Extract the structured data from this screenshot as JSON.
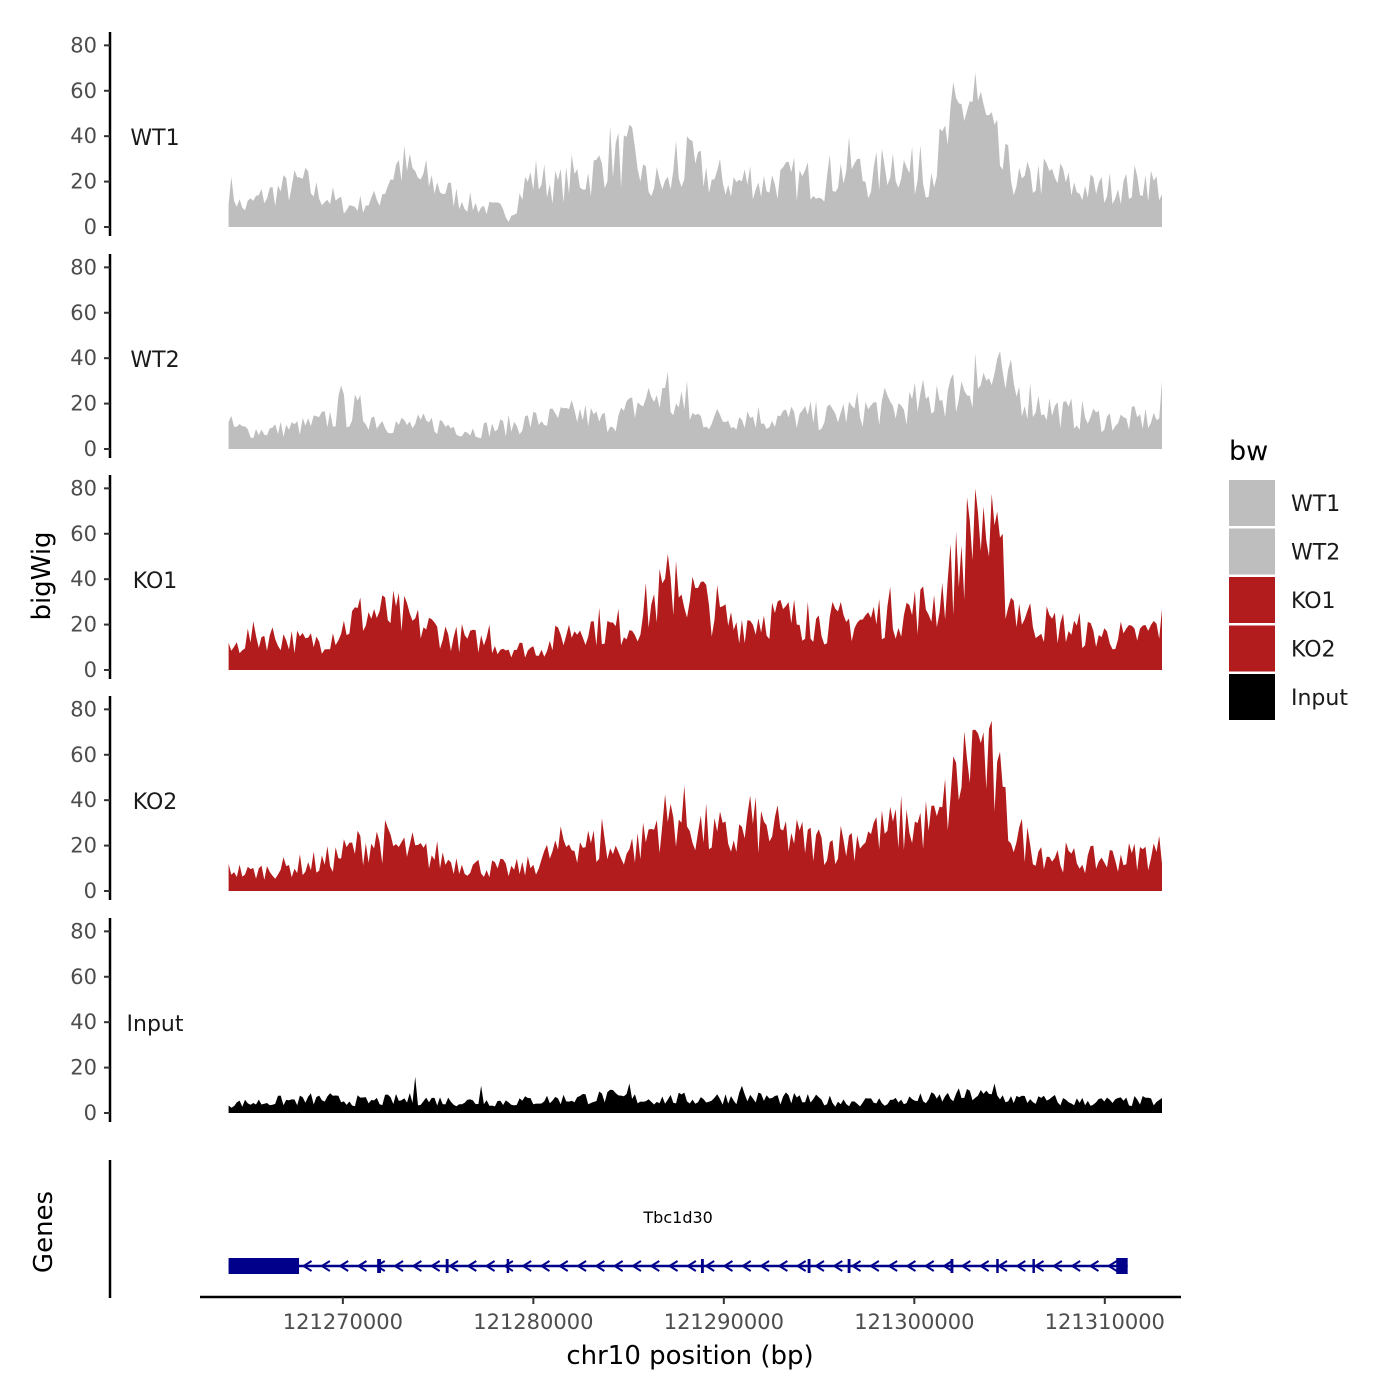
{
  "chart_data": {
    "type": "area",
    "chromosome": "chr10",
    "xlabel": "chr10 position (bp)",
    "ylabel": "bigWig",
    "genes_label": "Genes",
    "xlim": [
      121262500,
      121314000
    ],
    "data_range": [
      121264000,
      121313000
    ],
    "x_ticks": [
      {
        "value": 121270000,
        "label": "121270000"
      },
      {
        "value": 121280000,
        "label": "121280000"
      },
      {
        "value": 121290000,
        "label": "121290000"
      },
      {
        "value": 121300000,
        "label": "121300000"
      },
      {
        "value": 121310000,
        "label": "121310000"
      }
    ],
    "ylim": [
      0,
      85
    ],
    "y_ticks": [
      {
        "value": 0,
        "label": "0"
      },
      {
        "value": 20,
        "label": "20"
      },
      {
        "value": 40,
        "label": "40"
      },
      {
        "value": 60,
        "label": "60"
      },
      {
        "value": 80,
        "label": "80"
      }
    ],
    "tracks": [
      {
        "name": "WT1",
        "color": "#bebebe",
        "profile": [
          [
            0,
            18
          ],
          [
            1.5,
            8
          ],
          [
            3,
            12
          ],
          [
            4,
            14
          ],
          [
            5.5,
            16
          ],
          [
            7,
            18
          ],
          [
            8,
            20
          ],
          [
            9,
            16
          ],
          [
            10,
            14
          ],
          [
            11,
            12
          ],
          [
            12,
            10
          ],
          [
            13,
            9
          ],
          [
            14,
            10
          ],
          [
            16,
            12
          ],
          [
            17,
            20
          ],
          [
            18,
            27
          ],
          [
            19,
            26
          ],
          [
            20,
            22
          ],
          [
            21,
            20
          ],
          [
            22,
            19
          ],
          [
            23,
            17
          ],
          [
            24,
            14
          ],
          [
            25,
            12
          ],
          [
            26,
            10
          ],
          [
            27,
            9
          ],
          [
            28,
            8
          ],
          [
            29,
            8
          ],
          [
            30,
            4
          ],
          [
            31,
            12
          ],
          [
            32,
            20
          ],
          [
            33,
            22
          ],
          [
            34,
            20
          ],
          [
            35,
            18
          ],
          [
            36,
            19
          ],
          [
            37,
            22
          ],
          [
            38,
            22
          ],
          [
            39,
            23
          ],
          [
            40,
            28
          ],
          [
            41,
            33
          ],
          [
            42,
            30
          ],
          [
            43,
            30
          ],
          [
            44,
            27
          ],
          [
            45,
            17
          ],
          [
            46,
            20
          ],
          [
            47,
            18
          ],
          [
            48,
            22
          ],
          [
            49,
            26
          ],
          [
            50,
            25
          ],
          [
            51,
            24
          ],
          [
            52,
            20
          ],
          [
            53,
            20
          ],
          [
            54,
            19
          ],
          [
            55,
            20
          ],
          [
            56,
            22
          ],
          [
            57,
            18
          ],
          [
            58,
            20
          ],
          [
            59,
            20
          ],
          [
            60,
            21
          ],
          [
            61,
            20
          ],
          [
            62,
            21
          ],
          [
            63,
            20
          ],
          [
            64,
            20
          ],
          [
            65,
            23
          ],
          [
            66,
            25
          ],
          [
            67,
            28
          ],
          [
            68,
            22
          ],
          [
            69,
            20
          ],
          [
            70,
            25
          ],
          [
            71,
            30
          ],
          [
            72,
            27
          ],
          [
            73,
            24
          ],
          [
            74,
            22
          ],
          [
            75,
            24
          ],
          [
            76,
            30
          ],
          [
            77,
            38
          ],
          [
            78,
            45
          ],
          [
            79,
            56
          ],
          [
            80,
            55
          ],
          [
            81,
            46
          ],
          [
            82,
            35
          ],
          [
            83,
            25
          ],
          [
            84,
            23
          ],
          [
            85,
            18
          ],
          [
            86,
            20
          ],
          [
            87,
            22
          ],
          [
            88,
            22
          ],
          [
            89,
            20
          ],
          [
            90,
            18
          ],
          [
            91,
            16
          ],
          [
            92,
            17
          ],
          [
            93,
            17
          ],
          [
            94,
            16
          ],
          [
            95,
            19
          ],
          [
            96,
            17
          ],
          [
            97,
            18
          ],
          [
            98,
            21
          ],
          [
            99,
            19
          ],
          [
            100,
            17
          ]
        ],
        "peaks": [
          [
            48,
            38
          ],
          [
            49,
            40
          ],
          [
            74,
            36
          ],
          [
            80,
            68
          ],
          [
            67,
            28
          ],
          [
            89,
            28
          ]
        ]
      },
      {
        "name": "WT2",
        "color": "#bebebe",
        "profile": [
          [
            0,
            10
          ],
          [
            2,
            8
          ],
          [
            4,
            8
          ],
          [
            6,
            9
          ],
          [
            8,
            10
          ],
          [
            10,
            12
          ],
          [
            12,
            16
          ],
          [
            14,
            16
          ],
          [
            16,
            13
          ],
          [
            18,
            11
          ],
          [
            20,
            10
          ],
          [
            22,
            11
          ],
          [
            24,
            10
          ],
          [
            26,
            8
          ],
          [
            28,
            9
          ],
          [
            30,
            10
          ],
          [
            32,
            12
          ],
          [
            34,
            13
          ],
          [
            36,
            14
          ],
          [
            38,
            15
          ],
          [
            40,
            12
          ],
          [
            42,
            14
          ],
          [
            44,
            20
          ],
          [
            46,
            24
          ],
          [
            48,
            18
          ],
          [
            50,
            14
          ],
          [
            52,
            13
          ],
          [
            54,
            14
          ],
          [
            56,
            15
          ],
          [
            58,
            13
          ],
          [
            60,
            14
          ],
          [
            62,
            14
          ],
          [
            64,
            14
          ],
          [
            66,
            16
          ],
          [
            68,
            17
          ],
          [
            70,
            18
          ],
          [
            72,
            18
          ],
          [
            74,
            20
          ],
          [
            76,
            22
          ],
          [
            78,
            26
          ],
          [
            80,
            30
          ],
          [
            82,
            30
          ],
          [
            84,
            26
          ],
          [
            86,
            22
          ],
          [
            88,
            18
          ],
          [
            90,
            15
          ],
          [
            92,
            14
          ],
          [
            94,
            13
          ],
          [
            96,
            12
          ],
          [
            98,
            13
          ],
          [
            100,
            14
          ]
        ],
        "peaks": [
          [
            12,
            28
          ],
          [
            47,
            34
          ],
          [
            49,
            30
          ],
          [
            76,
            28
          ],
          [
            80,
            42
          ],
          [
            83,
            34
          ],
          [
            100,
            30
          ]
        ]
      },
      {
        "name": "KO1",
        "color": "#b21c1c",
        "profile": [
          [
            0,
            8
          ],
          [
            2,
            14
          ],
          [
            4,
            15
          ],
          [
            6,
            14
          ],
          [
            8,
            12
          ],
          [
            10,
            13
          ],
          [
            12,
            18
          ],
          [
            14,
            24
          ],
          [
            16,
            25
          ],
          [
            18,
            23
          ],
          [
            20,
            20
          ],
          [
            22,
            18
          ],
          [
            24,
            14
          ],
          [
            26,
            13
          ],
          [
            28,
            12
          ],
          [
            30,
            10
          ],
          [
            32,
            9
          ],
          [
            34,
            10
          ],
          [
            36,
            16
          ],
          [
            38,
            20
          ],
          [
            40,
            18
          ],
          [
            42,
            18
          ],
          [
            44,
            22
          ],
          [
            46,
            32
          ],
          [
            48,
            36
          ],
          [
            50,
            32
          ],
          [
            52,
            26
          ],
          [
            54,
            20
          ],
          [
            56,
            22
          ],
          [
            58,
            24
          ],
          [
            60,
            23
          ],
          [
            62,
            22
          ],
          [
            64,
            20
          ],
          [
            66,
            20
          ],
          [
            68,
            22
          ],
          [
            70,
            24
          ],
          [
            72,
            25
          ],
          [
            74,
            27
          ],
          [
            76,
            30
          ],
          [
            78,
            45
          ],
          [
            80,
            65
          ],
          [
            82,
            50
          ],
          [
            84,
            30
          ],
          [
            86,
            22
          ],
          [
            88,
            20
          ],
          [
            90,
            18
          ],
          [
            92,
            16
          ],
          [
            94,
            15
          ],
          [
            96,
            14
          ],
          [
            98,
            16
          ],
          [
            100,
            20
          ]
        ],
        "peaks": [
          [
            48,
            48
          ],
          [
            51,
            39
          ],
          [
            80,
            80
          ],
          [
            81,
            72
          ],
          [
            83,
            60
          ],
          [
            28,
            20
          ],
          [
            62,
            30
          ]
        ]
      },
      {
        "name": "KO2",
        "color": "#b21c1c",
        "profile": [
          [
            0,
            10
          ],
          [
            2,
            8
          ],
          [
            4,
            9
          ],
          [
            6,
            10
          ],
          [
            8,
            11
          ],
          [
            10,
            12
          ],
          [
            12,
            16
          ],
          [
            14,
            20
          ],
          [
            16,
            22
          ],
          [
            18,
            19
          ],
          [
            20,
            17
          ],
          [
            22,
            15
          ],
          [
            24,
            13
          ],
          [
            26,
            11
          ],
          [
            28,
            10
          ],
          [
            30,
            9
          ],
          [
            32,
            10
          ],
          [
            34,
            15
          ],
          [
            36,
            20
          ],
          [
            38,
            22
          ],
          [
            40,
            18
          ],
          [
            42,
            17
          ],
          [
            44,
            20
          ],
          [
            46,
            30
          ],
          [
            48,
            33
          ],
          [
            50,
            28
          ],
          [
            52,
            24
          ],
          [
            54,
            22
          ],
          [
            56,
            28
          ],
          [
            58,
            26
          ],
          [
            60,
            24
          ],
          [
            62,
            22
          ],
          [
            64,
            20
          ],
          [
            66,
            22
          ],
          [
            68,
            24
          ],
          [
            70,
            26
          ],
          [
            72,
            28
          ],
          [
            74,
            29
          ],
          [
            76,
            30
          ],
          [
            78,
            48
          ],
          [
            80,
            65
          ],
          [
            82,
            48
          ],
          [
            84,
            26
          ],
          [
            86,
            20
          ],
          [
            88,
            16
          ],
          [
            90,
            14
          ],
          [
            92,
            13
          ],
          [
            94,
            14
          ],
          [
            96,
            15
          ],
          [
            98,
            16
          ],
          [
            100,
            18
          ]
        ],
        "peaks": [
          [
            56,
            42
          ],
          [
            40,
            32
          ],
          [
            80,
            71
          ],
          [
            81,
            70
          ],
          [
            83,
            46
          ],
          [
            69,
            30
          ],
          [
            76,
            33
          ]
        ]
      },
      {
        "name": "Input",
        "color": "#000000",
        "profile": [
          [
            0,
            4
          ],
          [
            5,
            5
          ],
          [
            10,
            6
          ],
          [
            15,
            5
          ],
          [
            20,
            6
          ],
          [
            25,
            5
          ],
          [
            30,
            5
          ],
          [
            35,
            6
          ],
          [
            40,
            7
          ],
          [
            45,
            6
          ],
          [
            50,
            6
          ],
          [
            55,
            7
          ],
          [
            60,
            6
          ],
          [
            65,
            5
          ],
          [
            70,
            5
          ],
          [
            75,
            6
          ],
          [
            80,
            8
          ],
          [
            85,
            6
          ],
          [
            90,
            5
          ],
          [
            95,
            5
          ],
          [
            100,
            5
          ]
        ],
        "peaks": [
          [
            20,
            16
          ],
          [
            43,
            13
          ],
          [
            55,
            12
          ],
          [
            82,
            13
          ],
          [
            27,
            12
          ]
        ]
      }
    ],
    "legend": {
      "title": "bw",
      "position": "right",
      "entries": [
        {
          "label": "WT1",
          "color": "#bebebe"
        },
        {
          "label": "WT2",
          "color": "#bebebe"
        },
        {
          "label": "KO1",
          "color": "#b21c1c"
        },
        {
          "label": "KO2",
          "color": "#b21c1c"
        },
        {
          "label": "Input",
          "color": "#000000"
        }
      ]
    },
    "gene": {
      "name": "Tbc1d30",
      "strand": "-",
      "color": "#00008b",
      "start": 121264000,
      "end": 121311200,
      "exons": [
        [
          121264000,
          121267700
        ],
        [
          121271800,
          121272000
        ],
        [
          121275400,
          121275550
        ],
        [
          121278600,
          121278700
        ],
        [
          121288800,
          121288950
        ],
        [
          121294400,
          121294550
        ],
        [
          121296500,
          121296650
        ],
        [
          121301900,
          121302050
        ],
        [
          121304300,
          121304400
        ],
        [
          121306200,
          121306300
        ],
        [
          121310600,
          121311200
        ]
      ]
    }
  }
}
